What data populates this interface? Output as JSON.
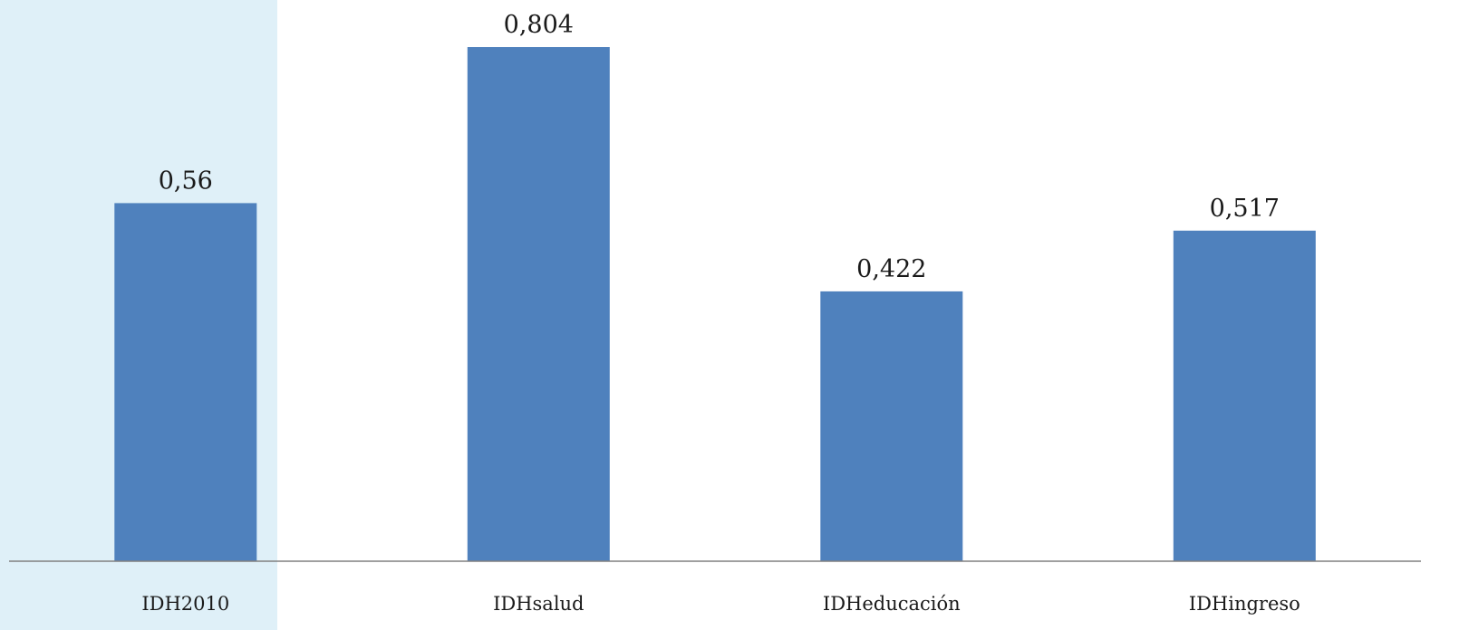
{
  "chart_data": {
    "type": "bar",
    "title": "",
    "xlabel": "",
    "ylabel": "",
    "categories": [
      "IDH2010",
      "IDHsalud",
      "IDHeducación",
      "IDHingreso"
    ],
    "values": [
      0.56,
      0.804,
      0.422,
      0.517
    ],
    "value_labels": [
      "0,56",
      "0,804",
      "0,422",
      "0,517"
    ],
    "ylim": [
      0,
      0.9
    ],
    "grid": false,
    "legend": "none",
    "highlight_category": "IDH2010",
    "colors": {
      "bar": "#4f81bd",
      "highlight_background": "#dff0f8",
      "axis": "#808080"
    }
  }
}
